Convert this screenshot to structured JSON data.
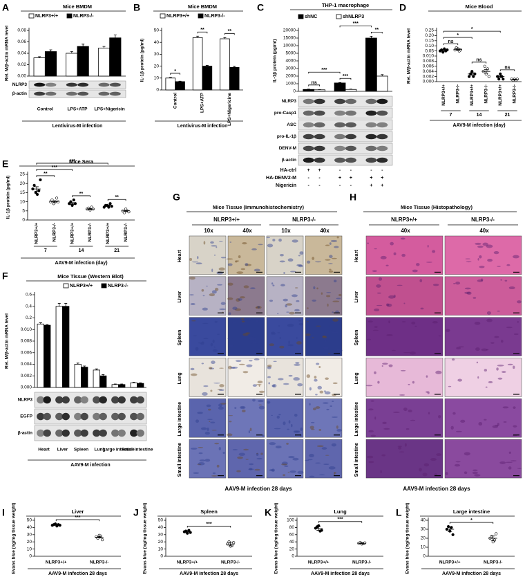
{
  "chart_data": [
    {
      "panel": "A",
      "type": "bar",
      "title": "Mice BMDM",
      "ylabel": "Rel. M/β-actin mRNA level",
      "xlabel": "Lentivirus-M infection",
      "categories": [
        "Control",
        "LPS+ATP",
        "LPS+Nigericin"
      ],
      "series": [
        {
          "name": "NLRP3+/+",
          "color": "#ffffff",
          "values": [
            0.032,
            0.04,
            0.049
          ],
          "errors": [
            0.002,
            0.003,
            0.003
          ]
        },
        {
          "name": "NLRP3-/-",
          "color": "#000000",
          "values": [
            0.043,
            0.052,
            0.067
          ],
          "errors": [
            0.003,
            0.004,
            0.005
          ]
        }
      ],
      "ylim": [
        0,
        0.08
      ],
      "yticks": [
        {
          "value": 0,
          "label": "0.00"
        },
        0.02,
        0.04,
        0.06,
        0.08
      ],
      "blots": [
        "NLRP3",
        "β-actin"
      ]
    },
    {
      "panel": "B",
      "type": "bar",
      "title": "Mice BMDM",
      "ylabel": "IL-1β protein (pg/ml)",
      "xlabel": "Lentivirus-M infection",
      "categories": [
        "Control",
        "LPS+ATP",
        "LPS+Nigericine"
      ],
      "series": [
        {
          "name": "NLRP3+/+",
          "color": "#ffffff",
          "values": [
            10,
            44,
            43
          ],
          "errors": [
            0.5,
            1.2,
            1
          ]
        },
        {
          "name": "NLRP3-/-",
          "color": "#000000",
          "values": [
            7,
            20,
            19
          ],
          "errors": [
            0.4,
            0.6,
            0.8
          ]
        }
      ],
      "ylim": [
        0,
        50
      ],
      "yticks": [
        0,
        10,
        20,
        30,
        40,
        50
      ],
      "brackets": [
        {
          "text": "*",
          "from": 0,
          "to": 1
        },
        {
          "text": "**",
          "from": 2,
          "to": 3
        },
        {
          "text": "**",
          "from": 4,
          "to": 5
        }
      ]
    },
    {
      "panel": "C",
      "type": "bar",
      "title": "THP-1 macrophage",
      "ylabel": "IL-1β protein (pg/ml)",
      "categories": [
        null,
        null,
        null
      ],
      "series": [
        {
          "name": "shNC",
          "color": "#000000",
          "values": [
            250,
            1100,
            15000
          ],
          "errors": [
            40,
            60,
            1200
          ]
        },
        {
          "name": "shNLRP3",
          "color": "#ffffff",
          "values": [
            200,
            250,
            2000
          ],
          "errors": [
            30,
            40,
            200
          ]
        }
      ],
      "ylim": [
        0,
        20000
      ],
      "yticks": [
        0,
        1000,
        2000,
        3000,
        4000,
        5000,
        10000,
        15000,
        20000
      ],
      "axis_break": true,
      "brackets": [
        {
          "text": "ns",
          "from": 0,
          "to": 1
        },
        {
          "text": "***",
          "from": 2,
          "to": 3
        },
        {
          "text": "**",
          "from": 4,
          "to": 5
        },
        {
          "text": "***",
          "from": 0,
          "to": 2
        },
        {
          "text": "***",
          "from": 2,
          "to": 4
        }
      ],
      "blots": [
        "NLRP3",
        "pro-Casp1",
        "ASC",
        "pro-IL-1β",
        "DENV-M",
        "β-actin"
      ],
      "treatments": [
        {
          "label": "HA-ctrl",
          "signs": [
            "+",
            "+",
            "-",
            "-",
            "-",
            "-"
          ]
        },
        {
          "label": "HA-DENV2-M",
          "signs": [
            "-",
            "-",
            "+",
            "+",
            "+",
            "+"
          ]
        },
        {
          "label": "Nigericin",
          "signs": [
            "-",
            "-",
            "-",
            "-",
            "+",
            "+"
          ]
        }
      ]
    },
    {
      "panel": "D",
      "type": "dot",
      "title": "Mice Blood",
      "ylabel": "Rel. M/β-actin mRNA level",
      "xlabel": "AAV9-M infection (day)",
      "categories": [
        "NLRP3+/+",
        "NLRP3-/-",
        "NLRP3+/+",
        "NLRP3-/-",
        "NLRP3+/+",
        "NLRP3-/-"
      ],
      "days": [
        "7",
        "14",
        "21"
      ],
      "points": [
        [
          0.05,
          0.06,
          0.04,
          0.07,
          0.05,
          0.06
        ],
        [
          0.06,
          0.08,
          0.07,
          0.05,
          0.06
        ],
        [
          0.002,
          0.003,
          0.004,
          0.002,
          0.003
        ],
        [
          0.004,
          0.006,
          0.003,
          0.005,
          0.002
        ],
        [
          0.002,
          0.001,
          0.003,
          0.002,
          0.001
        ],
        [
          0.001,
          0.0005,
          0.001,
          0.0005,
          0.001
        ]
      ],
      "values": [
        0.055,
        0.065,
        0.003,
        0.004,
        0.002,
        0.0008
      ],
      "errors": [
        0.008,
        0.01,
        0.0005,
        0.0007,
        0.0004,
        0.0002
      ],
      "ylim": [
        0,
        0.25
      ],
      "yticks": [
        {
          "value": 0,
          "label": "0.000"
        },
        0.002,
        0.004,
        0.006,
        0.008,
        {
          "value": 0.01,
          "label": "0.010"
        },
        0.05,
        {
          "value": 0.1,
          "label": "0.10"
        },
        0.15,
        {
          "value": 0.2,
          "label": "0.20"
        },
        0.25
      ],
      "axis_break": true,
      "brackets": [
        {
          "text": "ns",
          "from": 0,
          "to": 1
        },
        {
          "text": "ns",
          "from": 2,
          "to": 3
        },
        {
          "text": "ns",
          "from": 4,
          "to": 5
        },
        {
          "text": "*",
          "from": 0,
          "to": 2
        },
        {
          "text": "*",
          "from": 0,
          "to": 4
        }
      ]
    },
    {
      "panel": "E",
      "type": "dot",
      "title": "Mice Sera",
      "ylabel": "IL-1β protein (pg/ml)",
      "xlabel": "AAV9-M infection (day)",
      "categories": [
        "NLRP3+/+",
        "NLRP3-/-",
        "NLRP3+/+",
        "NLRP3-/-",
        "NLRP3+/+",
        "NLRP3-/-"
      ],
      "days": [
        "7",
        "14",
        "21"
      ],
      "points": [
        [
          17,
          19,
          15,
          14,
          16,
          22
        ],
        [
          10,
          11,
          9,
          10,
          12,
          10
        ],
        [
          9,
          10,
          8,
          11,
          9
        ],
        [
          6,
          6.5,
          5.5,
          7,
          6
        ],
        [
          7,
          8,
          8,
          7,
          9,
          7.5
        ],
        [
          5,
          4,
          6,
          5,
          4.5
        ]
      ],
      "values": [
        17,
        10,
        9,
        6,
        8,
        5
      ],
      "errors": [
        1.2,
        0.5,
        0.5,
        0.3,
        0.3,
        0.3
      ],
      "ylim": [
        0,
        25
      ],
      "yticks": [
        0,
        5,
        10,
        15,
        20,
        25
      ],
      "brackets": [
        {
          "text": "**",
          "from": 0,
          "to": 1
        },
        {
          "text": "**",
          "from": 2,
          "to": 3
        },
        {
          "text": "**",
          "from": 4,
          "to": 5
        },
        {
          "text": "***",
          "from": 0,
          "to": 2
        },
        {
          "text": "***",
          "from": 0,
          "to": 4
        }
      ]
    },
    {
      "panel": "F",
      "type": "bar",
      "title": "Mice Tissue (Western Blot)",
      "ylabel": "Rel. M/β-actin mRNA level",
      "xlabel": "AAV9-M infection",
      "categories": [
        "Heart",
        "Liver",
        "Spleen",
        "Lung",
        "Large intestine",
        "Small intestine"
      ],
      "series": [
        {
          "name": "NLRP3+/+",
          "color": "#ffffff",
          "values": [
            0.1,
            0.4,
            0.004,
            0.003,
            0.0005,
            0.0008
          ],
          "errors": [
            0.02,
            0.05,
            0.0002,
            0.0002,
            0.0001,
            0.0001
          ]
        },
        {
          "name": "NLRP3-/-",
          "color": "#000000",
          "values": [
            0.08,
            0.4,
            0.0035,
            0.002,
            0.0005,
            0.0007
          ],
          "errors": [
            0.01,
            0.05,
            0.0002,
            0.0002,
            0.0001,
            0.0001
          ]
        }
      ],
      "ylim": [
        0,
        0.6
      ],
      "yticks": [
        {
          "value": 0,
          "label": "0.000"
        },
        0.002,
        0.004,
        0.006,
        0.008,
        {
          "value": 0.01,
          "label": "0.010"
        },
        0.2,
        0.4,
        0.6
      ],
      "axis_break": true,
      "blots": [
        "NLRP3",
        "EGFP",
        "β-actin"
      ]
    },
    {
      "panel": "I",
      "type": "dot",
      "title": "Liver",
      "ylabel": "Evans blue (ng/mg tissue weight)",
      "xlabel": "AAV9-M infection 28 days",
      "categories": [
        "NLRP3+/+",
        "NLRP3-/-"
      ],
      "points": [
        [
          43,
          44,
          45,
          42,
          44,
          43
        ],
        [
          27,
          25,
          29,
          28,
          23
        ]
      ],
      "values": [
        43.5,
        26.5
      ],
      "errors": [
        0.6,
        1.1
      ],
      "ylim": [
        0,
        50
      ],
      "yticks": [
        0,
        10,
        20,
        30,
        40,
        50
      ],
      "brackets": [
        {
          "text": "***",
          "from": 0,
          "to": 1
        }
      ]
    },
    {
      "panel": "J",
      "type": "dot",
      "title": "Spleen",
      "ylabel": "Evans blue (ng/mg tissue weight)",
      "xlabel": "AAV9-M infection 28 days",
      "categories": [
        "NLRP3+/+",
        "NLRP3-/-"
      ],
      "points": [
        [
          34,
          35,
          32,
          36,
          33
        ],
        [
          17,
          20,
          14,
          15,
          19
        ]
      ],
      "values": [
        34,
        17
      ],
      "errors": [
        1.5,
        2.5
      ],
      "ylim": [
        0,
        50
      ],
      "yticks": [
        0,
        10,
        20,
        30,
        40,
        50
      ],
      "brackets": [
        {
          "text": "***",
          "from": 0,
          "to": 1
        }
      ]
    },
    {
      "panel": "K",
      "type": "dot",
      "title": "Lung",
      "ylabel": "Evans blue (ng/mg tissue weight)",
      "xlabel": "AAV9-M infection 28 days",
      "categories": [
        "NLRP3+/+",
        "NLRP3-/-"
      ],
      "points": [
        [
          78,
          82,
          85,
          70,
          72
        ],
        [
          36,
          38,
          34,
          35,
          37
        ]
      ],
      "values": [
        77,
        36
      ],
      "errors": [
        5,
        1.5
      ],
      "ylim": [
        0,
        100
      ],
      "yticks": [
        0,
        20,
        40,
        60,
        80,
        100
      ],
      "brackets": [
        {
          "text": "***",
          "from": 0,
          "to": 1
        }
      ]
    },
    {
      "panel": "L",
      "type": "dot",
      "title": "Large  intestine",
      "ylabel": "Evans blue (ng/mg tissue weight)",
      "xlabel": "AAV9-M infection 28 days",
      "categories": [
        "NLRP3+/+",
        "NLRP3-/-"
      ],
      "points": [
        [
          30,
          33,
          28,
          32,
          24
        ],
        [
          20,
          22,
          16,
          18,
          25
        ]
      ],
      "values": [
        30,
        20
      ],
      "errors": [
        2.5,
        2.5
      ],
      "ylim": [
        0,
        40
      ],
      "yticks": [
        0,
        10,
        20,
        30,
        40
      ],
      "brackets": [
        {
          "text": "*",
          "from": 0,
          "to": 1
        }
      ]
    }
  ],
  "histology": [
    {
      "panel": "G",
      "title": "Mice Tissue (Immunohistochemistry)",
      "groups": [
        "NLRP3+/+",
        "NLRP3-/-"
      ],
      "magnifications": [
        "10x",
        "40x",
        "10x",
        "40x"
      ],
      "rows": [
        "Heart",
        "Liver",
        "Spleen",
        "Lung",
        "Large intestine",
        "Small intestine"
      ],
      "caption": "AAV9-M infection 28 days"
    },
    {
      "panel": "H",
      "title": "Mice Tissue (Histopathology)",
      "groups": [
        "NLRP3+/+",
        "NLRP3-/-"
      ],
      "magnifications": [
        "40x",
        "40x"
      ],
      "rows": [
        "Heart",
        "Liver",
        "Spleen",
        "Lung",
        "Large intestine",
        "Small intestine"
      ],
      "caption": "AAV9-M infection 28 days"
    }
  ]
}
